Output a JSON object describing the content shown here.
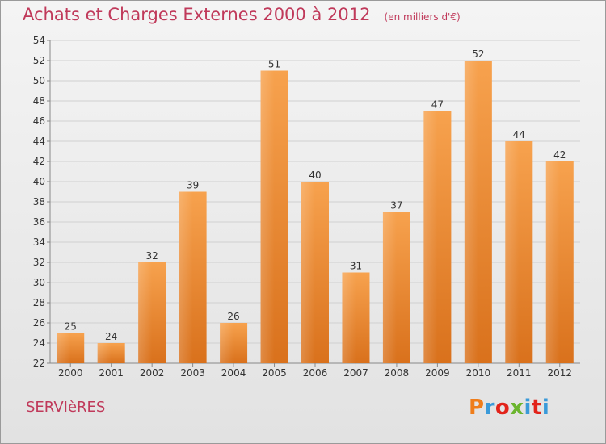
{
  "header": {
    "title": "Achats et Charges Externes 2000 à 2012",
    "subtitle": "(en milliers d'€)"
  },
  "footer": {
    "place": "SERVIèRES",
    "brand": "Proxiti",
    "brand_colors": [
      "#ef7d1a",
      "#3a9ad9",
      "#e2231a",
      "#6bb52e",
      "#3a9ad9",
      "#e2231a",
      "#3a9ad9"
    ]
  },
  "colors": {
    "accent": "#c0395a",
    "bar_top": "#f7a24e",
    "bar_bottom": "#d9711c",
    "grid": "#d0d0d0"
  },
  "chart_data": {
    "type": "bar",
    "categories": [
      "2000",
      "2001",
      "2002",
      "2003",
      "2004",
      "2005",
      "2006",
      "2007",
      "2008",
      "2009",
      "2010",
      "2011",
      "2012"
    ],
    "values": [
      25,
      24,
      32,
      39,
      26,
      51,
      40,
      31,
      37,
      47,
      52,
      44,
      42
    ],
    "title": "Achats et Charges Externes 2000 à 2012",
    "subtitle": "(en milliers d'€)",
    "xlabel": "",
    "ylabel": "",
    "ylim": [
      22,
      54
    ],
    "yticks": [
      22,
      24,
      26,
      28,
      30,
      32,
      34,
      36,
      38,
      40,
      42,
      44,
      46,
      48,
      50,
      52,
      54
    ],
    "grid": true,
    "legend": "none"
  }
}
